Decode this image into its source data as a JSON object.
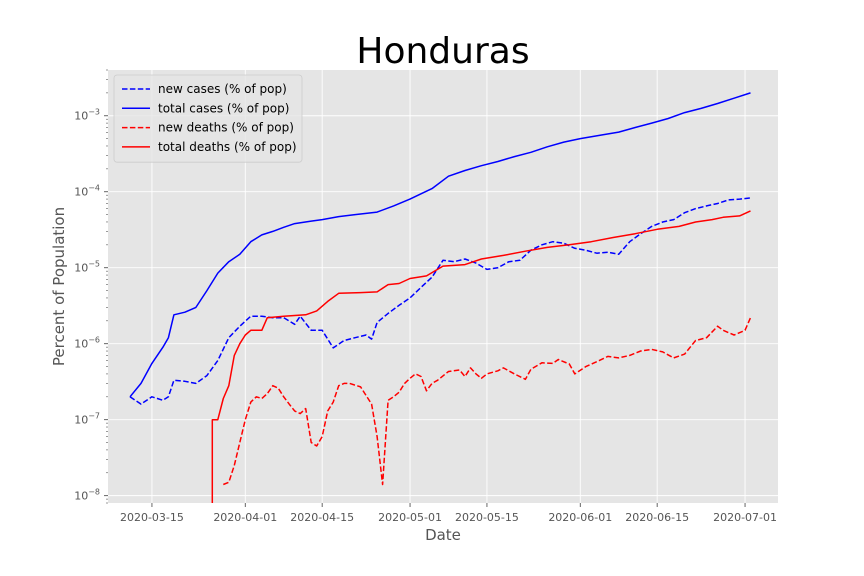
{
  "chart_data": {
    "type": "line",
    "title": "Honduras",
    "xlabel": "Date",
    "ylabel": "Percent of Population",
    "yscale": "log",
    "ylim": [
      8e-09,
      0.004
    ],
    "xlim": [
      "2020-03-07",
      "2020-07-07"
    ],
    "grid": true,
    "legend_position": "top-left",
    "x_ticks": [
      "2020-03-15",
      "2020-04-01",
      "2020-04-15",
      "2020-05-01",
      "2020-05-15",
      "2020-06-01",
      "2020-06-15",
      "2020-07-01"
    ],
    "y_ticks": [
      {
        "value": 1e-08,
        "mantissa": "10",
        "exp": "−8"
      },
      {
        "value": 1e-07,
        "mantissa": "10",
        "exp": "−7"
      },
      {
        "value": 1e-06,
        "mantissa": "10",
        "exp": "−6"
      },
      {
        "value": 1e-05,
        "mantissa": "10",
        "exp": "−5"
      },
      {
        "value": 0.0001,
        "mantissa": "10",
        "exp": "−4"
      },
      {
        "value": 0.001,
        "mantissa": "10",
        "exp": "−3"
      }
    ],
    "colors": {
      "plot_bg": "#e5e5e5",
      "grid": "#ffffff",
      "cases": "#0000ff",
      "deaths": "#ff0000"
    },
    "series": [
      {
        "name": "new cases (% of pop)",
        "color": "#0000ff",
        "dashed": true,
        "points": [
          [
            "2020-03-11",
            2e-07
          ],
          [
            "2020-03-13",
            1.6e-07
          ],
          [
            "2020-03-15",
            2e-07
          ],
          [
            "2020-03-17",
            1.8e-07
          ],
          [
            "2020-03-18",
            2e-07
          ],
          [
            "2020-03-19",
            3.3e-07
          ],
          [
            "2020-03-21",
            3.2e-07
          ],
          [
            "2020-03-23",
            3e-07
          ],
          [
            "2020-03-25",
            3.8e-07
          ],
          [
            "2020-03-27",
            6e-07
          ],
          [
            "2020-03-29",
            1.2e-06
          ],
          [
            "2020-03-31",
            1.7e-06
          ],
          [
            "2020-04-02",
            2.3e-06
          ],
          [
            "2020-04-04",
            2.3e-06
          ],
          [
            "2020-04-06",
            2.2e-06
          ],
          [
            "2020-04-08",
            2.2e-06
          ],
          [
            "2020-04-10",
            1.8e-06
          ],
          [
            "2020-04-11",
            2.3e-06
          ],
          [
            "2020-04-13",
            1.5e-06
          ],
          [
            "2020-04-15",
            1.5e-06
          ],
          [
            "2020-04-17",
            8.8e-07
          ],
          [
            "2020-04-19",
            1.1e-06
          ],
          [
            "2020-04-21",
            1.2e-06
          ],
          [
            "2020-04-23",
            1.3e-06
          ],
          [
            "2020-04-24",
            1.15e-06
          ],
          [
            "2020-04-25",
            1.9e-06
          ],
          [
            "2020-04-27",
            2.5e-06
          ],
          [
            "2020-04-29",
            3.2e-06
          ],
          [
            "2020-05-01",
            4e-06
          ],
          [
            "2020-05-03",
            5.5e-06
          ],
          [
            "2020-05-05",
            7.5e-06
          ],
          [
            "2020-05-07",
            1.25e-05
          ],
          [
            "2020-05-09",
            1.2e-05
          ],
          [
            "2020-05-11",
            1.3e-05
          ],
          [
            "2020-05-13",
            1.15e-05
          ],
          [
            "2020-05-15",
            9.5e-06
          ],
          [
            "2020-05-17",
            1e-05
          ],
          [
            "2020-05-19",
            1.2e-05
          ],
          [
            "2020-05-21",
            1.25e-05
          ],
          [
            "2020-05-23",
            1.7e-05
          ],
          [
            "2020-05-25",
            2e-05
          ],
          [
            "2020-05-27",
            2.2e-05
          ],
          [
            "2020-05-29",
            2.1e-05
          ],
          [
            "2020-05-31",
            1.8e-05
          ],
          [
            "2020-06-02",
            1.7e-05
          ],
          [
            "2020-06-04",
            1.55e-05
          ],
          [
            "2020-06-06",
            1.6e-05
          ],
          [
            "2020-06-08",
            1.5e-05
          ],
          [
            "2020-06-10",
            2.2e-05
          ],
          [
            "2020-06-12",
            2.8e-05
          ],
          [
            "2020-06-14",
            3.5e-05
          ],
          [
            "2020-06-16",
            4e-05
          ],
          [
            "2020-06-18",
            4.3e-05
          ],
          [
            "2020-06-20",
            5.3e-05
          ],
          [
            "2020-06-22",
            6e-05
          ],
          [
            "2020-06-24",
            6.5e-05
          ],
          [
            "2020-06-26",
            7e-05
          ],
          [
            "2020-06-28",
            7.8e-05
          ],
          [
            "2020-06-30",
            8e-05
          ],
          [
            "2020-07-02",
            8.3e-05
          ]
        ]
      },
      {
        "name": "total cases (% of pop)",
        "color": "#0000ff",
        "dashed": false,
        "points": [
          [
            "2020-03-11",
            2e-07
          ],
          [
            "2020-03-13",
            3e-07
          ],
          [
            "2020-03-15",
            5.5e-07
          ],
          [
            "2020-03-17",
            9e-07
          ],
          [
            "2020-03-18",
            1.2e-06
          ],
          [
            "2020-03-19",
            2.4e-06
          ],
          [
            "2020-03-21",
            2.6e-06
          ],
          [
            "2020-03-23",
            3e-06
          ],
          [
            "2020-03-25",
            5e-06
          ],
          [
            "2020-03-27",
            8.5e-06
          ],
          [
            "2020-03-29",
            1.2e-05
          ],
          [
            "2020-03-31",
            1.5e-05
          ],
          [
            "2020-04-02",
            2.2e-05
          ],
          [
            "2020-04-04",
            2.7e-05
          ],
          [
            "2020-04-06",
            3e-05
          ],
          [
            "2020-04-08",
            3.4e-05
          ],
          [
            "2020-04-10",
            3.8e-05
          ],
          [
            "2020-04-13",
            4.1e-05
          ],
          [
            "2020-04-15",
            4.3e-05
          ],
          [
            "2020-04-18",
            4.7e-05
          ],
          [
            "2020-04-21",
            5e-05
          ],
          [
            "2020-04-25",
            5.4e-05
          ],
          [
            "2020-04-28",
            6.5e-05
          ],
          [
            "2020-05-01",
            8e-05
          ],
          [
            "2020-05-05",
            0.00011
          ],
          [
            "2020-05-08",
            0.00016
          ],
          [
            "2020-05-11",
            0.00019
          ],
          [
            "2020-05-14",
            0.00022
          ],
          [
            "2020-05-17",
            0.00025
          ],
          [
            "2020-05-20",
            0.00029
          ],
          [
            "2020-05-23",
            0.00033
          ],
          [
            "2020-05-26",
            0.00039
          ],
          [
            "2020-05-29",
            0.00045
          ],
          [
            "2020-06-01",
            0.0005
          ],
          [
            "2020-06-05",
            0.00056
          ],
          [
            "2020-06-08",
            0.00061
          ],
          [
            "2020-06-11",
            0.0007
          ],
          [
            "2020-06-14",
            0.0008
          ],
          [
            "2020-06-17",
            0.00092
          ],
          [
            "2020-06-20",
            0.0011
          ],
          [
            "2020-06-23",
            0.00125
          ],
          [
            "2020-06-26",
            0.00145
          ],
          [
            "2020-06-29",
            0.0017
          ],
          [
            "2020-07-02",
            0.002
          ]
        ]
      },
      {
        "name": "new deaths (% of pop)",
        "color": "#ff0000",
        "dashed": true,
        "points": [
          [
            "2020-03-28",
            1.4e-08
          ],
          [
            "2020-03-29",
            1.5e-08
          ],
          [
            "2020-03-30",
            2.5e-08
          ],
          [
            "2020-03-31",
            5e-08
          ],
          [
            "2020-04-01",
            1e-07
          ],
          [
            "2020-04-02",
            1.7e-07
          ],
          [
            "2020-04-03",
            2e-07
          ],
          [
            "2020-04-04",
            1.9e-07
          ],
          [
            "2020-04-05",
            2.2e-07
          ],
          [
            "2020-04-06",
            2.8e-07
          ],
          [
            "2020-04-07",
            2.6e-07
          ],
          [
            "2020-04-08",
            2e-07
          ],
          [
            "2020-04-09",
            1.6e-07
          ],
          [
            "2020-04-10",
            1.3e-07
          ],
          [
            "2020-04-11",
            1.2e-07
          ],
          [
            "2020-04-12",
            1.4e-07
          ],
          [
            "2020-04-13",
            5e-08
          ],
          [
            "2020-04-14",
            4.5e-08
          ],
          [
            "2020-04-15",
            6e-08
          ],
          [
            "2020-04-16",
            1.3e-07
          ],
          [
            "2020-04-17",
            1.7e-07
          ],
          [
            "2020-04-18",
            2.8e-07
          ],
          [
            "2020-04-19",
            3e-07
          ],
          [
            "2020-04-20",
            3e-07
          ],
          [
            "2020-04-22",
            2.7e-07
          ],
          [
            "2020-04-24",
            1.6e-07
          ],
          [
            "2020-04-25",
            6e-08
          ],
          [
            "2020-04-26",
            1.4e-08
          ],
          [
            "2020-04-27",
            1.8e-07
          ],
          [
            "2020-04-28",
            2e-07
          ],
          [
            "2020-04-29",
            2.3e-07
          ],
          [
            "2020-04-30",
            3e-07
          ],
          [
            "2020-05-01",
            3.5e-07
          ],
          [
            "2020-05-02",
            4e-07
          ],
          [
            "2020-05-03",
            3.7e-07
          ],
          [
            "2020-05-04",
            2.4e-07
          ],
          [
            "2020-05-05",
            3e-07
          ],
          [
            "2020-05-06",
            3.3e-07
          ],
          [
            "2020-05-08",
            4.3e-07
          ],
          [
            "2020-05-10",
            4.5e-07
          ],
          [
            "2020-05-11",
            3.7e-07
          ],
          [
            "2020-05-12",
            4.8e-07
          ],
          [
            "2020-05-13",
            4e-07
          ],
          [
            "2020-05-14",
            3.5e-07
          ],
          [
            "2020-05-15",
            4e-07
          ],
          [
            "2020-05-17",
            4.4e-07
          ],
          [
            "2020-05-18",
            4.8e-07
          ],
          [
            "2020-05-20",
            4e-07
          ],
          [
            "2020-05-22",
            3.4e-07
          ],
          [
            "2020-05-23",
            4.6e-07
          ],
          [
            "2020-05-25",
            5.6e-07
          ],
          [
            "2020-05-27",
            5.5e-07
          ],
          [
            "2020-05-28",
            6.2e-07
          ],
          [
            "2020-05-30",
            5.4e-07
          ],
          [
            "2020-05-31",
            4e-07
          ],
          [
            "2020-06-02",
            5e-07
          ],
          [
            "2020-06-04",
            5.8e-07
          ],
          [
            "2020-06-06",
            6.8e-07
          ],
          [
            "2020-06-08",
            6.5e-07
          ],
          [
            "2020-06-10",
            7e-07
          ],
          [
            "2020-06-12",
            8e-07
          ],
          [
            "2020-06-14",
            8.4e-07
          ],
          [
            "2020-06-16",
            7.8e-07
          ],
          [
            "2020-06-18",
            6.5e-07
          ],
          [
            "2020-06-20",
            7.3e-07
          ],
          [
            "2020-06-22",
            1.1e-06
          ],
          [
            "2020-06-24",
            1.2e-06
          ],
          [
            "2020-06-26",
            1.7e-06
          ],
          [
            "2020-06-27",
            1.5e-06
          ],
          [
            "2020-06-29",
            1.3e-06
          ],
          [
            "2020-07-01",
            1.5e-06
          ],
          [
            "2020-07-02",
            2.2e-06
          ]
        ]
      },
      {
        "name": "total deaths (% of pop)",
        "color": "#ff0000",
        "dashed": false,
        "points": [
          [
            "2020-03-26",
            8e-09
          ],
          [
            "2020-03-26",
            1e-07
          ],
          [
            "2020-03-27",
            1e-07
          ],
          [
            "2020-03-28",
            1.9e-07
          ],
          [
            "2020-03-29",
            2.8e-07
          ],
          [
            "2020-03-30",
            7e-07
          ],
          [
            "2020-03-31",
            1e-06
          ],
          [
            "2020-04-01",
            1.3e-06
          ],
          [
            "2020-04-02",
            1.5e-06
          ],
          [
            "2020-04-04",
            1.5e-06
          ],
          [
            "2020-04-05",
            2.2e-06
          ],
          [
            "2020-04-08",
            2.3e-06
          ],
          [
            "2020-04-12",
            2.4e-06
          ],
          [
            "2020-04-14",
            2.7e-06
          ],
          [
            "2020-04-16",
            3.6e-06
          ],
          [
            "2020-04-18",
            4.6e-06
          ],
          [
            "2020-04-22",
            4.7e-06
          ],
          [
            "2020-04-25",
            4.8e-06
          ],
          [
            "2020-04-27",
            6e-06
          ],
          [
            "2020-04-29",
            6.2e-06
          ],
          [
            "2020-05-01",
            7.2e-06
          ],
          [
            "2020-05-04",
            7.8e-06
          ],
          [
            "2020-05-07",
            1.05e-05
          ],
          [
            "2020-05-11",
            1.1e-05
          ],
          [
            "2020-05-14",
            1.3e-05
          ],
          [
            "2020-05-18",
            1.45e-05
          ],
          [
            "2020-05-22",
            1.65e-05
          ],
          [
            "2020-05-26",
            1.85e-05
          ],
          [
            "2020-05-30",
            2e-05
          ],
          [
            "2020-06-03",
            2.2e-05
          ],
          [
            "2020-06-07",
            2.5e-05
          ],
          [
            "2020-06-11",
            2.8e-05
          ],
          [
            "2020-06-15",
            3.2e-05
          ],
          [
            "2020-06-19",
            3.5e-05
          ],
          [
            "2020-06-22",
            4e-05
          ],
          [
            "2020-06-25",
            4.3e-05
          ],
          [
            "2020-06-27",
            4.6e-05
          ],
          [
            "2020-06-30",
            4.8e-05
          ],
          [
            "2020-07-02",
            5.6e-05
          ]
        ]
      }
    ]
  }
}
